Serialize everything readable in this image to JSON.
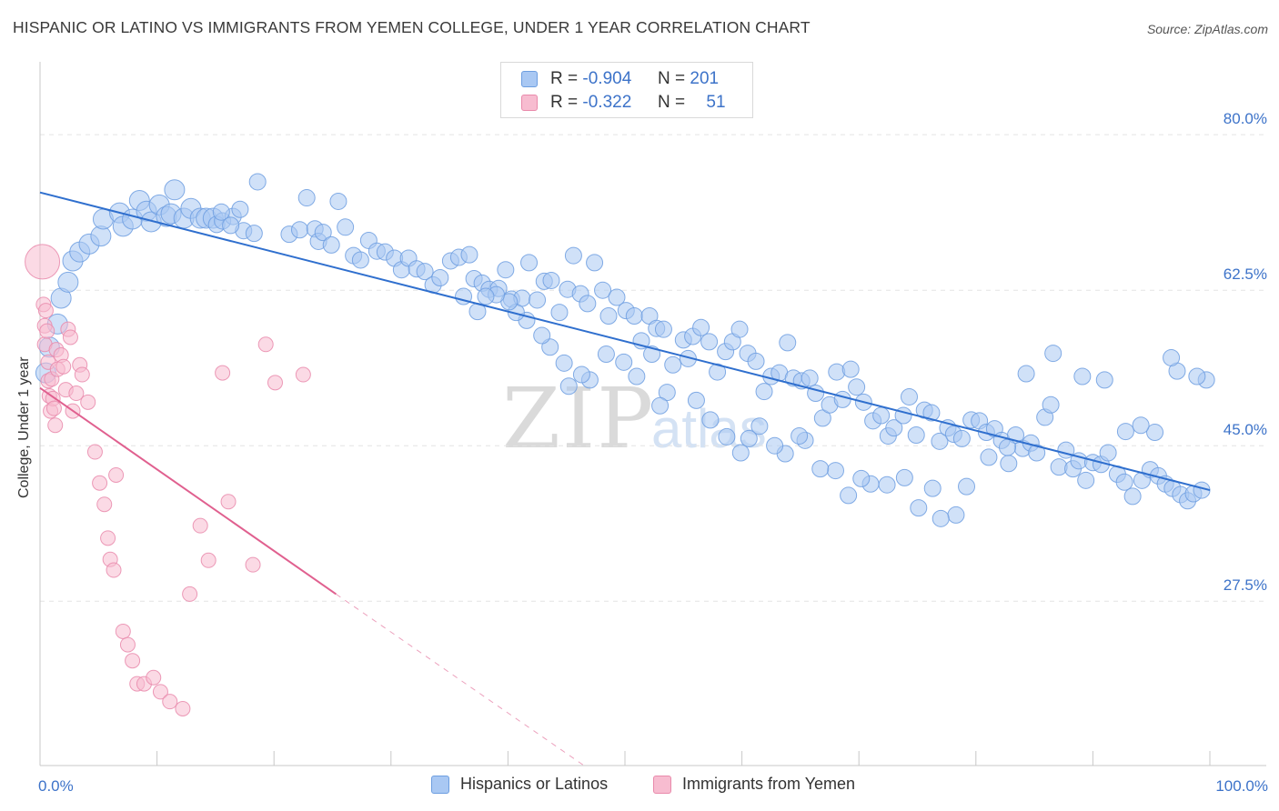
{
  "header": {
    "title": "HISPANIC OR LATINO VS IMMIGRANTS FROM YEMEN COLLEGE, UNDER 1 YEAR CORRELATION CHART",
    "source": "Source: ZipAtlas.com"
  },
  "legend_top": {
    "rows": [
      {
        "r_label": "R =",
        "r_value": "-0.904",
        "n_label": "N =",
        "n_value": "201",
        "color": "#a9c8f3",
        "border": "#6d9ee0"
      },
      {
        "r_label": "R =",
        "r_value": "-0.322",
        "n_label": "N =",
        "n_value": "51",
        "color": "#f7bcd0",
        "border": "#e98aab"
      }
    ]
  },
  "legend_bottom": {
    "items": [
      {
        "label": "Hispanics or Latinos",
        "color": "#a9c8f3",
        "border": "#6d9ee0"
      },
      {
        "label": "Immigrants from Yemen",
        "color": "#f7bcd0",
        "border": "#e98aab"
      }
    ]
  },
  "watermark": {
    "zip": "ZIP",
    "atlas": "atlas"
  },
  "chart_data": {
    "type": "scatter",
    "title": "HISPANIC OR LATINO VS IMMIGRANTS FROM YEMEN COLLEGE, UNDER 1 YEAR CORRELATION CHART",
    "xlabel": "",
    "ylabel": "College, Under 1 year",
    "xlim": [
      0,
      100
    ],
    "ylim": [
      9,
      88
    ],
    "x_tick_labels": [
      {
        "value": 0,
        "label": "0.0%"
      },
      {
        "value": 100,
        "label": "100.0%"
      }
    ],
    "y_tick_labels": [
      {
        "value": 80,
        "label": "80.0%"
      },
      {
        "value": 62.5,
        "label": "62.5%"
      },
      {
        "value": 45,
        "label": "45.0%"
      },
      {
        "value": 27.5,
        "label": "27.5%"
      }
    ],
    "grid": true,
    "series": [
      {
        "name": "Hispanics or Latinos",
        "color": "#a9c8f3",
        "stroke": "#6d9ee0",
        "trend": {
          "x0": 0,
          "y0": 73.5,
          "x1": 100,
          "y1": 40.0,
          "color": "#2f6fce"
        },
        "points": [
          [
            0.5,
            53.2
          ],
          [
            0.8,
            56.1
          ],
          [
            1.5,
            58.7
          ],
          [
            1.8,
            61.6
          ],
          [
            2.4,
            63.4
          ],
          [
            2.8,
            65.8
          ],
          [
            3.4,
            66.8
          ],
          [
            4.2,
            67.7
          ],
          [
            5.2,
            68.6
          ],
          [
            5.4,
            70.5
          ],
          [
            6.8,
            71.2
          ],
          [
            7.1,
            69.7
          ],
          [
            7.9,
            70.5
          ],
          [
            8.5,
            72.6
          ],
          [
            9.1,
            71.4
          ],
          [
            9.5,
            70.2
          ],
          [
            10.2,
            72.1
          ],
          [
            10.8,
            70.8
          ],
          [
            11.5,
            73.8
          ],
          [
            11.2,
            71.1
          ],
          [
            12.3,
            70.6
          ],
          [
            12.9,
            71.7
          ],
          [
            13.7,
            70.6
          ],
          [
            14.2,
            70.6
          ],
          [
            14.8,
            70.6
          ],
          [
            15.1,
            69.9
          ],
          [
            15.6,
            70.3
          ],
          [
            16.5,
            70.8
          ],
          [
            17.4,
            69.2
          ],
          [
            18.3,
            68.9
          ],
          [
            15.5,
            71.3
          ],
          [
            16.3,
            69.8
          ],
          [
            17.1,
            71.6
          ],
          [
            18.6,
            74.7
          ],
          [
            21.3,
            68.8
          ],
          [
            22.2,
            69.3
          ],
          [
            22.8,
            72.9
          ],
          [
            23.5,
            69.4
          ],
          [
            23.8,
            68.0
          ],
          [
            24.2,
            69.0
          ],
          [
            24.9,
            67.6
          ],
          [
            25.5,
            72.5
          ],
          [
            26.1,
            69.6
          ],
          [
            26.8,
            66.4
          ],
          [
            27.4,
            65.9
          ],
          [
            28.1,
            68.1
          ],
          [
            28.8,
            66.9
          ],
          [
            29.5,
            66.8
          ],
          [
            30.3,
            66.1
          ],
          [
            30.9,
            64.8
          ],
          [
            31.5,
            66.1
          ],
          [
            32.2,
            64.9
          ],
          [
            32.9,
            64.6
          ],
          [
            33.6,
            63.1
          ],
          [
            34.2,
            63.9
          ],
          [
            35.1,
            65.8
          ],
          [
            35.8,
            66.2
          ],
          [
            36.7,
            66.5
          ],
          [
            37.1,
            63.8
          ],
          [
            37.8,
            63.3
          ],
          [
            38.4,
            62.6
          ],
          [
            39.2,
            62.7
          ],
          [
            39.8,
            64.8
          ],
          [
            40.3,
            61.5
          ],
          [
            41.2,
            61.6
          ],
          [
            41.8,
            65.6
          ],
          [
            42.5,
            61.4
          ],
          [
            43.1,
            63.5
          ],
          [
            43.7,
            63.6
          ],
          [
            44.4,
            60.0
          ],
          [
            45.1,
            62.6
          ],
          [
            45.6,
            66.4
          ],
          [
            46.2,
            62.1
          ],
          [
            46.8,
            61.0
          ],
          [
            47.4,
            65.6
          ],
          [
            48.1,
            62.5
          ],
          [
            48.6,
            59.6
          ],
          [
            49.3,
            61.7
          ],
          [
            50.1,
            60.2
          ],
          [
            50.8,
            59.6
          ],
          [
            51.4,
            56.8
          ],
          [
            52.1,
            59.6
          ],
          [
            52.7,
            58.2
          ],
          [
            53.3,
            58.1
          ],
          [
            54.1,
            54.1
          ],
          [
            55.0,
            56.9
          ],
          [
            55.8,
            57.3
          ],
          [
            56.5,
            58.3
          ],
          [
            57.2,
            56.7
          ],
          [
            57.9,
            53.3
          ],
          [
            58.6,
            55.6
          ],
          [
            59.2,
            56.7
          ],
          [
            59.8,
            58.1
          ],
          [
            60.5,
            55.4
          ],
          [
            61.2,
            54.5
          ],
          [
            61.9,
            51.1
          ],
          [
            62.5,
            52.8
          ],
          [
            63.2,
            53.2
          ],
          [
            63.9,
            56.6
          ],
          [
            64.4,
            52.6
          ],
          [
            65.1,
            52.3
          ],
          [
            65.8,
            52.6
          ],
          [
            66.3,
            50.9
          ],
          [
            66.9,
            48.1
          ],
          [
            67.5,
            49.6
          ],
          [
            68.1,
            53.3
          ],
          [
            68.6,
            50.2
          ],
          [
            69.3,
            53.6
          ],
          [
            69.8,
            51.6
          ],
          [
            70.4,
            49.9
          ],
          [
            71.2,
            47.8
          ],
          [
            71.9,
            48.4
          ],
          [
            72.5,
            46.1
          ],
          [
            73.0,
            47.0
          ],
          [
            73.8,
            48.4
          ],
          [
            74.3,
            50.5
          ],
          [
            74.9,
            46.2
          ],
          [
            75.6,
            49.0
          ],
          [
            76.2,
            48.7
          ],
          [
            76.9,
            45.5
          ],
          [
            77.6,
            47.0
          ],
          [
            78.1,
            46.3
          ],
          [
            78.8,
            45.8
          ],
          [
            79.6,
            47.9
          ],
          [
            80.3,
            47.8
          ],
          [
            80.9,
            46.5
          ],
          [
            81.6,
            46.9
          ],
          [
            82.2,
            45.6
          ],
          [
            82.8,
            43.0
          ],
          [
            83.4,
            46.2
          ],
          [
            84.0,
            44.7
          ],
          [
            84.7,
            45.3
          ],
          [
            85.2,
            44.2
          ],
          [
            85.9,
            48.2
          ],
          [
            86.4,
            49.6
          ],
          [
            87.1,
            42.6
          ],
          [
            87.7,
            44.5
          ],
          [
            88.3,
            42.4
          ],
          [
            88.8,
            43.3
          ],
          [
            89.4,
            41.1
          ],
          [
            90.0,
            43.1
          ],
          [
            90.7,
            42.9
          ],
          [
            91.3,
            44.2
          ],
          [
            92.1,
            41.8
          ],
          [
            92.7,
            40.9
          ],
          [
            93.4,
            39.3
          ],
          [
            94.2,
            41.1
          ],
          [
            94.9,
            42.3
          ],
          [
            95.6,
            41.6
          ],
          [
            96.2,
            40.7
          ],
          [
            96.8,
            40.2
          ],
          [
            97.5,
            39.5
          ],
          [
            98.1,
            38.8
          ],
          [
            98.6,
            39.6
          ],
          [
            99.3,
            40.0
          ],
          [
            99.7,
            52.4
          ],
          [
            98.9,
            52.8
          ],
          [
            97.2,
            53.4
          ],
          [
            96.7,
            54.9
          ],
          [
            95.3,
            46.5
          ],
          [
            94.1,
            47.3
          ],
          [
            92.8,
            46.6
          ],
          [
            91.0,
            52.4
          ],
          [
            89.1,
            52.8
          ],
          [
            86.6,
            55.4
          ],
          [
            84.3,
            53.1
          ],
          [
            82.7,
            44.8
          ],
          [
            81.1,
            43.7
          ],
          [
            79.2,
            40.4
          ],
          [
            78.3,
            37.2
          ],
          [
            77.0,
            36.8
          ],
          [
            76.3,
            40.2
          ],
          [
            75.1,
            38.0
          ],
          [
            73.9,
            41.4
          ],
          [
            72.4,
            40.6
          ],
          [
            71.0,
            40.7
          ],
          [
            70.2,
            41.3
          ],
          [
            69.1,
            39.4
          ],
          [
            68.0,
            42.2
          ],
          [
            66.7,
            42.4
          ],
          [
            65.4,
            45.6
          ],
          [
            64.9,
            46.1
          ],
          [
            63.7,
            44.1
          ],
          [
            62.8,
            45.0
          ],
          [
            61.5,
            47.2
          ],
          [
            60.6,
            45.8
          ],
          [
            59.9,
            44.2
          ],
          [
            58.7,
            46.0
          ],
          [
            57.3,
            47.9
          ],
          [
            56.1,
            50.1
          ],
          [
            55.4,
            54.8
          ],
          [
            53.6,
            51.0
          ],
          [
            53.0,
            49.5
          ],
          [
            52.3,
            55.3
          ],
          [
            51.0,
            52.8
          ],
          [
            49.9,
            54.4
          ],
          [
            48.4,
            55.3
          ],
          [
            47.0,
            52.4
          ],
          [
            46.3,
            53.0
          ],
          [
            45.2,
            51.7
          ],
          [
            44.8,
            54.3
          ],
          [
            43.6,
            56.1
          ],
          [
            42.9,
            57.4
          ],
          [
            41.6,
            59.1
          ],
          [
            40.7,
            60.0
          ],
          [
            40.1,
            61.2
          ],
          [
            39.0,
            62.0
          ],
          [
            38.1,
            61.8
          ],
          [
            37.4,
            60.1
          ],
          [
            36.2,
            61.8
          ]
        ]
      },
      {
        "name": "Immigrants from Yemen",
        "color": "#f7bcd0",
        "stroke": "#e98aab",
        "trend": {
          "x0": 0,
          "y0": 51.5,
          "x1": 25.3,
          "y1": 28.3,
          "dash_x1": 46.5,
          "dash_y1": 9.0,
          "color": "#e0608f"
        },
        "points": [
          [
            0.2,
            65.7
          ],
          [
            0.3,
            60.9
          ],
          [
            0.4,
            58.5
          ],
          [
            0.4,
            56.4
          ],
          [
            0.5,
            60.2
          ],
          [
            0.6,
            57.9
          ],
          [
            0.7,
            54.4
          ],
          [
            0.7,
            52.3
          ],
          [
            0.8,
            50.6
          ],
          [
            0.9,
            48.9
          ],
          [
            1.0,
            52.5
          ],
          [
            1.1,
            50.3
          ],
          [
            1.2,
            49.2
          ],
          [
            1.3,
            47.3
          ],
          [
            1.4,
            55.8
          ],
          [
            1.5,
            53.6
          ],
          [
            1.8,
            55.2
          ],
          [
            2.0,
            53.9
          ],
          [
            2.2,
            51.3
          ],
          [
            2.4,
            58.1
          ],
          [
            2.6,
            57.2
          ],
          [
            2.8,
            48.9
          ],
          [
            3.1,
            50.9
          ],
          [
            3.4,
            54.1
          ],
          [
            3.6,
            53.0
          ],
          [
            4.1,
            49.9
          ],
          [
            4.7,
            44.3
          ],
          [
            5.1,
            40.8
          ],
          [
            5.5,
            38.4
          ],
          [
            5.8,
            34.6
          ],
          [
            6.0,
            32.2
          ],
          [
            6.3,
            31.0
          ],
          [
            6.5,
            41.7
          ],
          [
            7.1,
            24.1
          ],
          [
            7.5,
            22.6
          ],
          [
            7.9,
            20.8
          ],
          [
            8.3,
            18.2
          ],
          [
            8.9,
            18.2
          ],
          [
            9.7,
            18.9
          ],
          [
            10.3,
            17.3
          ],
          [
            11.1,
            16.2
          ],
          [
            12.2,
            15.4
          ],
          [
            12.8,
            28.3
          ],
          [
            13.7,
            36.0
          ],
          [
            14.4,
            32.1
          ],
          [
            15.6,
            53.2
          ],
          [
            16.1,
            38.7
          ],
          [
            18.2,
            31.6
          ],
          [
            19.3,
            56.4
          ],
          [
            20.1,
            52.1
          ],
          [
            22.5,
            53.0
          ]
        ]
      }
    ]
  }
}
